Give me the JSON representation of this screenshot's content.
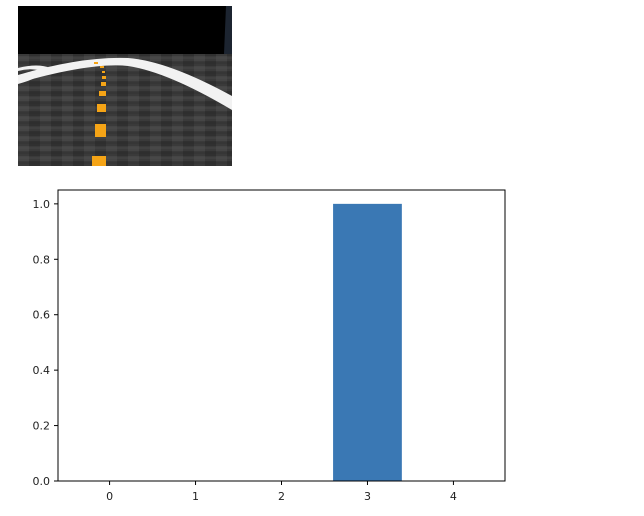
{
  "image": {
    "icon": "road-camera-view",
    "colors": {
      "sky": "#000000",
      "road": "#3a3a3a",
      "center_line": "#f5a416",
      "edge_line": "#f2f2f2"
    }
  },
  "chart_data": {
    "type": "bar",
    "categories": [
      "0",
      "1",
      "2",
      "3",
      "4"
    ],
    "values": [
      0.0,
      0.0,
      0.0,
      1.0,
      0.0
    ],
    "title": "",
    "xlabel": "",
    "ylabel": "",
    "ylim": [
      0.0,
      1.05
    ],
    "xlim": [
      -0.6,
      4.6
    ],
    "yticks": [
      "0.0",
      "0.2",
      "0.4",
      "0.6",
      "0.8",
      "1.0"
    ],
    "grid": false,
    "bar_color": "#3a78b4"
  }
}
